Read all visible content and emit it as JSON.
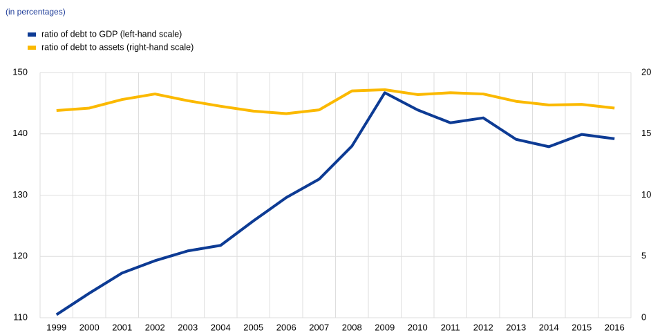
{
  "chart_data": {
    "type": "line",
    "subtitle": "(in percentages)",
    "categories": [
      "1999",
      "2000",
      "2001",
      "2002",
      "2003",
      "2004",
      "2005",
      "2006",
      "2007",
      "2008",
      "2009",
      "2010",
      "2011",
      "2012",
      "2013",
      "2014",
      "2015",
      "2016"
    ],
    "series": [
      {
        "name": "ratio of debt to GDP (left-hand scale)",
        "color": "#0d3b94",
        "values": [
          110.5,
          114.0,
          117.3,
          119.3,
          120.9,
          121.8,
          125.8,
          129.6,
          132.6,
          138.0,
          146.7,
          143.9,
          141.8,
          142.6,
          139.1,
          137.9,
          139.9,
          139.2
        ]
      },
      {
        "name": "ratio of debt to assets (right-hand scale)",
        "color": "#fbb900",
        "axis": "y2",
        "values": [
          16.9,
          17.1,
          17.8,
          18.25,
          17.7,
          17.25,
          16.85,
          16.65,
          16.95,
          18.5,
          18.6,
          18.2,
          18.35,
          18.25,
          17.65,
          17.35,
          17.4,
          17.1
        ]
      }
    ],
    "ylim": [
      110,
      150
    ],
    "yticks": [
      110,
      120,
      130,
      140,
      150
    ],
    "y2lim": [
      0,
      20
    ],
    "y2ticks": [
      0,
      5,
      10,
      15,
      20
    ],
    "grid": true
  }
}
